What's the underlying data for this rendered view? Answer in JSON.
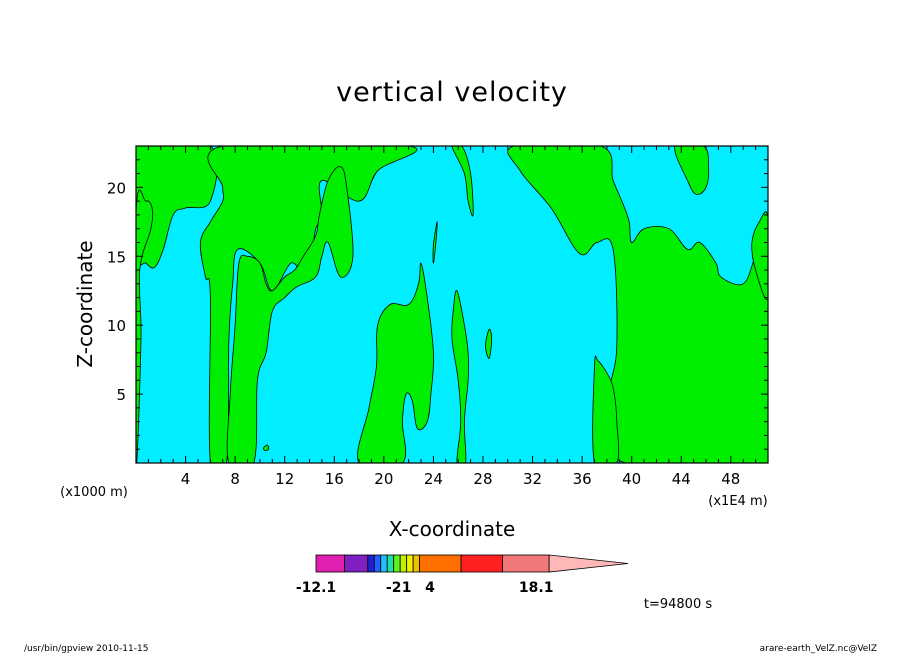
{
  "colors": {
    "positive_fill": "#00ee00",
    "negative_fill": "#00eeff",
    "contour_line": "#000000"
  },
  "chart_data": {
    "type": "contour",
    "title": "vertical velocity",
    "xlabel": "X-coordinate",
    "ylabel": "Z-coordinate",
    "x_unit_left": "(x1000 m)",
    "x_unit_right": "(x1E4 m)",
    "xlim": [
      0,
      51
    ],
    "ylim": [
      0,
      23
    ],
    "x_ticks": [
      4,
      8,
      12,
      16,
      20,
      24,
      28,
      32,
      36,
      40,
      44,
      48
    ],
    "y_ticks": [
      5,
      10,
      15,
      20
    ],
    "time_label": "t=94800 s",
    "footer_left": "/usr/bin/gpview   2010-11-15",
    "footer_right": "arare-earth_VelZ.nc@VelZ",
    "colorbar": {
      "colors": [
        "#e020b0",
        "#8020c0",
        "#2020d0",
        "#2060ff",
        "#20c0ff",
        "#20e0a0",
        "#60f020",
        "#c0f000",
        "#f0f000",
        "#f0c000",
        "#ff7000",
        "#ff2020",
        "#f07878",
        "#ffb8b8"
      ],
      "weights": [
        2.2,
        1.8,
        0.5,
        0.5,
        0.5,
        0.5,
        0.5,
        0.5,
        0.5,
        0.5,
        3.2,
        3.2,
        3.6,
        3.0
      ],
      "tick_labels": [
        "-12.1",
        "-2",
        "1",
        "4",
        "18.1"
      ],
      "tick_positions": [
        0,
        6.0,
        7.0,
        8.8,
        17.0
      ]
    },
    "positive_regions": [
      {
        "name": "upper-left-region",
        "points": [
          [
            0,
            23
          ],
          [
            6,
            23
          ],
          [
            6,
            19
          ],
          [
            4,
            18.5
          ],
          [
            3,
            18
          ],
          [
            2.2,
            15.5
          ],
          [
            1.5,
            14.2
          ],
          [
            0.8,
            14.5
          ],
          [
            0,
            15.2
          ]
        ]
      },
      {
        "name": "left-column-lower",
        "points": [
          [
            0,
            0
          ],
          [
            0.4,
            9
          ],
          [
            0.3,
            14
          ],
          [
            1.2,
            17
          ],
          [
            1.3,
            18.5
          ],
          [
            0.8,
            19
          ],
          [
            0,
            18
          ]
        ]
      },
      {
        "name": "main-upper-band",
        "points": [
          [
            7,
            23
          ],
          [
            22,
            23
          ],
          [
            19.5,
            21.2
          ],
          [
            18,
            19
          ],
          [
            15,
            20.5
          ],
          [
            15,
            18
          ],
          [
            14.5,
            17
          ],
          [
            14.2,
            15.5
          ],
          [
            13.5,
            13.8
          ],
          [
            12.5,
            14.5
          ],
          [
            11,
            12.5
          ],
          [
            10,
            14.5
          ],
          [
            8.2,
            15.5
          ],
          [
            7.8,
            13
          ],
          [
            7.5,
            9
          ],
          [
            7.3,
            0
          ],
          [
            6,
            0
          ],
          [
            6,
            12
          ],
          [
            5.6,
            13.5
          ],
          [
            5.2,
            16
          ],
          [
            6,
            17.5
          ],
          [
            7,
            19
          ],
          [
            7,
            20
          ]
        ]
      },
      {
        "name": "lower-left-patch",
        "points": [
          [
            7.5,
            0
          ],
          [
            7.6,
            5
          ],
          [
            8,
            10
          ],
          [
            8.3,
            14.5
          ],
          [
            9,
            15
          ],
          [
            10,
            14.5
          ],
          [
            10.5,
            13
          ],
          [
            11,
            12.5
          ],
          [
            12,
            13.5
          ],
          [
            12.8,
            14
          ],
          [
            13.5,
            15
          ],
          [
            14.5,
            16.5
          ],
          [
            14.8,
            18
          ],
          [
            15.5,
            20.5
          ],
          [
            16.5,
            21.5
          ],
          [
            17,
            20
          ],
          [
            17.5,
            15
          ],
          [
            16.5,
            13.5
          ],
          [
            15.5,
            16
          ],
          [
            15,
            15
          ],
          [
            14.5,
            13.5
          ],
          [
            13,
            12.8
          ],
          [
            12,
            12
          ],
          [
            11,
            11
          ],
          [
            10.5,
            8
          ],
          [
            9.8,
            6
          ],
          [
            9.5,
            0
          ]
        ]
      },
      {
        "name": "central-spire",
        "points": [
          [
            18,
            0
          ],
          [
            18.8,
            4
          ],
          [
            19.4,
            7
          ],
          [
            19.5,
            10
          ],
          [
            20.5,
            11.5
          ],
          [
            22,
            11.5
          ],
          [
            22.8,
            13
          ],
          [
            23,
            14.5
          ],
          [
            23.5,
            12
          ],
          [
            24,
            8
          ],
          [
            23.8,
            5
          ],
          [
            23.5,
            3
          ],
          [
            22.7,
            2.5
          ],
          [
            22.3,
            4.5
          ],
          [
            21.8,
            5
          ],
          [
            21.5,
            3
          ],
          [
            21.5,
            0
          ]
        ]
      },
      {
        "name": "center-right-thin",
        "points": [
          [
            25.9,
            0
          ],
          [
            26.2,
            3
          ],
          [
            26,
            6
          ],
          [
            25.5,
            9
          ],
          [
            25.6,
            11
          ],
          [
            25.9,
            12.5
          ],
          [
            26.5,
            10
          ],
          [
            26.8,
            8
          ],
          [
            26.8,
            6
          ],
          [
            26.5,
            3
          ],
          [
            26.6,
            0
          ]
        ]
      },
      {
        "name": "small-oval-a",
        "points": [
          [
            28.2,
            8.5
          ],
          [
            28.5,
            9.7
          ],
          [
            28.7,
            9
          ],
          [
            28.5,
            7.6
          ]
        ]
      },
      {
        "name": "small-oval-b",
        "points": [
          [
            24,
            15.8
          ],
          [
            24.3,
            17.5
          ],
          [
            24.2,
            16
          ],
          [
            24,
            14.5
          ]
        ]
      },
      {
        "name": "upper-center-right",
        "points": [
          [
            26.3,
            23
          ],
          [
            27,
            21
          ],
          [
            27.2,
            18
          ],
          [
            26.8,
            19
          ],
          [
            26.5,
            21
          ],
          [
            25.5,
            23
          ]
        ]
      },
      {
        "name": "right-main-block",
        "points": [
          [
            37.5,
            23
          ],
          [
            38.5,
            20.5
          ],
          [
            39.3,
            18.8
          ],
          [
            39.8,
            17.5
          ],
          [
            40,
            16
          ],
          [
            41,
            17
          ],
          [
            43,
            17
          ],
          [
            44.5,
            15.5
          ],
          [
            45.5,
            16
          ],
          [
            46.8,
            14.5
          ],
          [
            47.2,
            13.5
          ],
          [
            49,
            13
          ],
          [
            50,
            15
          ],
          [
            51,
            16.5
          ],
          [
            51,
            0
          ],
          [
            43,
            0
          ],
          [
            41,
            0
          ],
          [
            39.5,
            0
          ],
          [
            38.5,
            1
          ],
          [
            38.2,
            5
          ],
          [
            38.8,
            8.5
          ],
          [
            38.5,
            15.5
          ],
          [
            37.2,
            16
          ],
          [
            35.8,
            15.2
          ],
          [
            33.5,
            18.5
          ],
          [
            31,
            21.2
          ],
          [
            30.5,
            23
          ]
        ]
      },
      {
        "name": "upper-right-wisp",
        "points": [
          [
            43.5,
            23
          ],
          [
            44.5,
            20.5
          ],
          [
            45.2,
            19.5
          ],
          [
            46,
            20
          ],
          [
            46.2,
            21.5
          ],
          [
            45.8,
            23
          ]
        ]
      },
      {
        "name": "right-edge-strip",
        "points": [
          [
            51,
            17.8
          ],
          [
            50.3,
            17.5
          ],
          [
            49.7,
            16
          ],
          [
            50,
            14
          ],
          [
            51,
            12
          ]
        ]
      },
      {
        "name": "inner-right-column",
        "points": [
          [
            37,
            0
          ],
          [
            37,
            7
          ],
          [
            37.3,
            7.4
          ],
          [
            38.2,
            6.2
          ],
          [
            38.6,
            5
          ],
          [
            38.8,
            3
          ],
          [
            38.8,
            0
          ]
        ]
      },
      {
        "name": "tiny-blob",
        "points": [
          [
            10.3,
            1.1
          ],
          [
            10.6,
            1.3
          ],
          [
            10.7,
            1.0
          ],
          [
            10.4,
            0.9
          ]
        ]
      }
    ]
  }
}
